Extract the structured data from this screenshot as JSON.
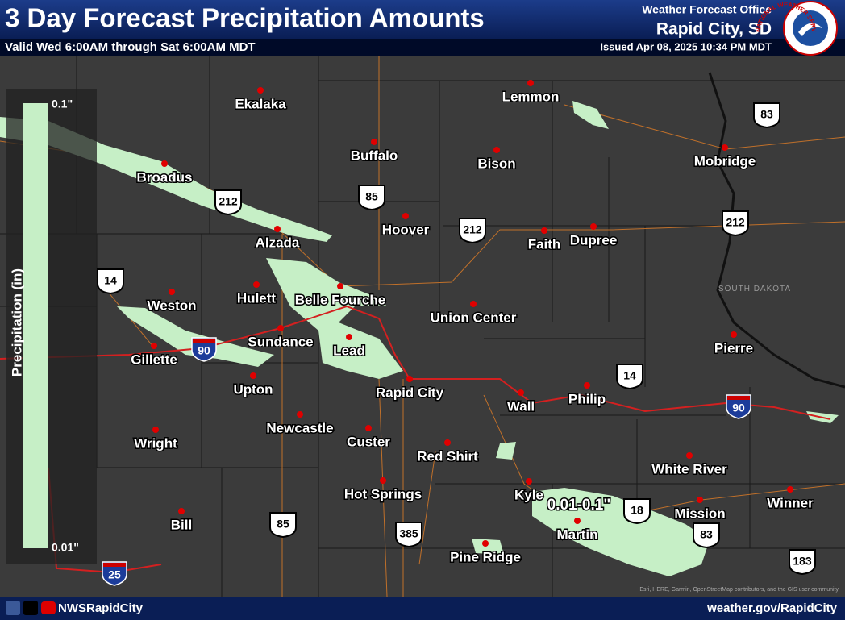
{
  "header": {
    "title": "3 Day Forecast Precipitation Amounts",
    "valid": "Valid Wed 6:00AM through Sat 6:00AM MDT",
    "office_line": "Weather Forecast Office",
    "office": "Rapid City, SD",
    "issued": "Issued Apr 08, 2025 10:34 PM MDT",
    "logo_text": "NATIONAL WEATHER SERVICE"
  },
  "legend": {
    "title": "Precipitation (in)",
    "top_label": "0.1\"",
    "bottom_label": "0.01\""
  },
  "map": {
    "cities": [
      "Ekalaka",
      "Lemmon",
      "Buffalo",
      "Bison",
      "Broadus",
      "Mobridge",
      "Hoover",
      "Faith",
      "Dupree",
      "Alzada",
      "Weston",
      "Hulett",
      "Belle Fourche",
      "Union Center",
      "Sundance",
      "Lead",
      "Pierre",
      "Gillette",
      "Upton",
      "Rapid City",
      "Wall",
      "Philip",
      "Newcastle",
      "Custer",
      "Wright",
      "Red Shirt",
      "White River",
      "Hot Springs",
      "Kyle",
      "Winner",
      "Mission",
      "Bill",
      "Martin",
      "Pine Ridge"
    ],
    "highways": [
      "83",
      "85",
      "212",
      "212",
      "212",
      "14",
      "14",
      "18",
      "83",
      "85",
      "385",
      "183"
    ],
    "interstates": [
      "90",
      "90",
      "25"
    ],
    "state_label": "SOUTH DAKOTA",
    "annotation": "0.01-0.1\"",
    "attribution": "Esri, HERE, Garmin, OpenStreetMap contributors, and the GIS user community"
  },
  "footer": {
    "handle": "NWSRapidCity",
    "url": "weather.gov/RapidCity"
  }
}
